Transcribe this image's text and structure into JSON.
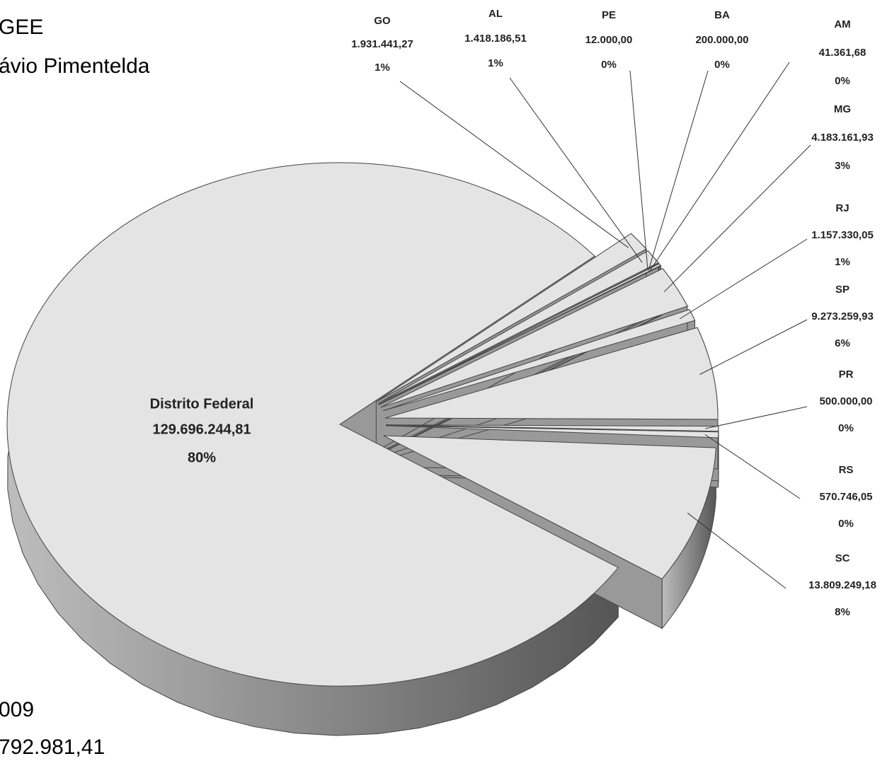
{
  "chart_data": {
    "type": "pie",
    "annotations": [
      "GEE",
      "ávio Pimentelda",
      "009",
      "792.981,41"
    ],
    "categories": [
      "Distrito Federal",
      "SC",
      "RS",
      "PR",
      "SP",
      "RJ",
      "MG",
      "AM",
      "BA",
      "PE",
      "AL",
      "GO"
    ],
    "values": [
      129696244.81,
      13809249.18,
      570746.05,
      500000,
      9273259.93,
      1157330.05,
      4183161.93,
      41361.68,
      200000,
      12000,
      1418186.51,
      1931441.27
    ],
    "value_labels": [
      "129.696.244,81",
      "13.809.249,18",
      "570.746,05",
      "500.000,00",
      "9.273.259,93",
      "1.157.330,05",
      "4.183.161,93",
      "41.361,68",
      "200.000,00",
      "12.000,00",
      "1.418.186,51",
      "1.931.441,27"
    ],
    "percent_labels": [
      "80%",
      "8%",
      "0%",
      "0%",
      "6%",
      "1%",
      "3%",
      "0%",
      "0%",
      "0%",
      "1%",
      "1%"
    ],
    "color": "#e4e4e4"
  }
}
